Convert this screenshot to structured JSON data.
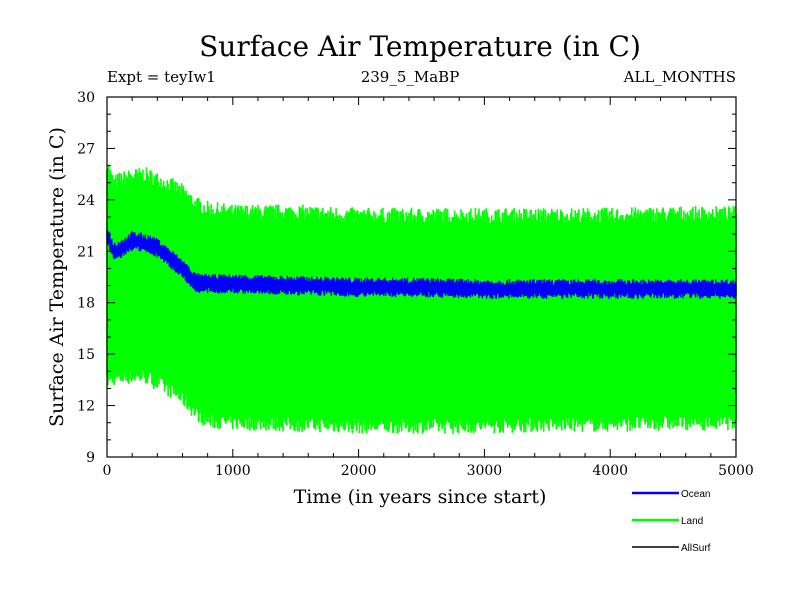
{
  "chart_data": {
    "type": "line",
    "title": "Surface Air Temperature (in C)",
    "subtitle_left": "Expt = teyIw1",
    "subtitle_center": "239_5_MaBP",
    "subtitle_right": "ALL_MONTHS",
    "xlabel": "Time (in years since start)",
    "ylabel": "Surface Air Temperature (in C)",
    "xlim": [
      0,
      5000
    ],
    "ylim": [
      9,
      30
    ],
    "xticks": [
      0,
      1000,
      2000,
      3000,
      4000,
      5000
    ],
    "yticks": [
      9,
      12,
      15,
      18,
      21,
      24,
      27,
      30
    ],
    "grid": false,
    "legend_position": "bottom-right",
    "series": [
      {
        "name": "Land",
        "color": "#00ff00",
        "kind": "envelope",
        "x": [
          0,
          50,
          100,
          200,
          300,
          400,
          500,
          600,
          700,
          800,
          1000,
          1500,
          2000,
          2500,
          3000,
          3500,
          4000,
          4500,
          5000
        ],
        "upper": [
          26.2,
          25.0,
          25.2,
          25.4,
          25.5,
          25.2,
          24.9,
          24.5,
          23.8,
          23.5,
          23.3,
          23.3,
          23.1,
          23.1,
          23.1,
          23.1,
          23.1,
          23.2,
          23.2
        ],
        "lower": [
          13.4,
          13.6,
          13.6,
          13.7,
          13.7,
          13.3,
          12.9,
          12.4,
          11.6,
          11.1,
          11.0,
          10.9,
          10.8,
          10.8,
          10.8,
          10.9,
          10.9,
          11.0,
          11.0
        ]
      },
      {
        "name": "Ocean",
        "color": "#0000ff",
        "kind": "band",
        "x": [
          0,
          50,
          100,
          200,
          300,
          400,
          500,
          600,
          700,
          750,
          800,
          1000,
          1500,
          2000,
          2500,
          3000,
          3500,
          4000,
          4500,
          5000
        ],
        "mean": [
          22.0,
          21.0,
          21.1,
          21.6,
          21.5,
          21.2,
          20.6,
          20.0,
          19.2,
          19.1,
          19.1,
          19.1,
          19.0,
          18.9,
          18.9,
          18.8,
          18.8,
          18.8,
          18.8,
          18.8
        ],
        "halfwidth": 0.4
      },
      {
        "name": "AllSurf",
        "color": "#000000",
        "kind": "line",
        "x": [],
        "values": []
      }
    ]
  }
}
